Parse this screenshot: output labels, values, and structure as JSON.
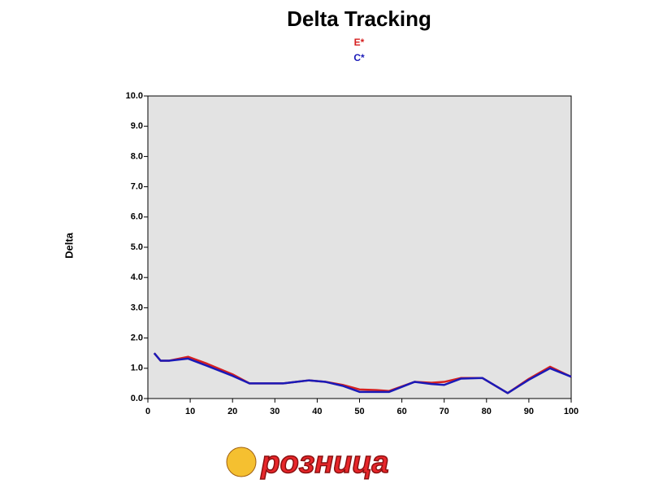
{
  "chart_data": {
    "type": "line",
    "title": "Delta Tracking",
    "y_label": "Delta",
    "x": [
      1.5,
      3,
      5,
      9.5,
      14,
      20,
      24,
      28,
      32,
      35,
      38,
      42,
      46,
      50,
      54,
      57,
      63,
      67,
      70,
      74,
      79,
      85,
      90,
      95,
      100
    ],
    "series": [
      {
        "name": "E*",
        "color": "#d62020",
        "values": [
          1.5,
          1.25,
          1.25,
          1.38,
          1.15,
          0.8,
          0.5,
          0.5,
          0.5,
          0.55,
          0.6,
          0.55,
          0.45,
          0.3,
          0.28,
          0.25,
          0.55,
          0.52,
          0.55,
          0.68,
          0.68,
          0.18,
          0.65,
          1.05,
          0.72
        ]
      },
      {
        "name": "C*",
        "color": "#1a1ab8",
        "values": [
          1.5,
          1.25,
          1.25,
          1.32,
          1.08,
          0.75,
          0.5,
          0.5,
          0.5,
          0.55,
          0.6,
          0.55,
          0.42,
          0.22,
          0.22,
          0.22,
          0.55,
          0.48,
          0.45,
          0.66,
          0.68,
          0.18,
          0.62,
          1.0,
          0.72
        ]
      }
    ],
    "xlim": [
      0,
      100
    ],
    "xticks": [
      0,
      10,
      20,
      30,
      40,
      50,
      60,
      70,
      80,
      90,
      100
    ],
    "ylim": [
      0,
      10
    ],
    "yticks": [
      {
        "value": 0,
        "label": "0.0"
      },
      {
        "value": 1,
        "label": "1.0"
      },
      {
        "value": 2,
        "label": "2.0"
      },
      {
        "value": 3,
        "label": "3.0"
      },
      {
        "value": 4,
        "label": "4.0"
      },
      {
        "value": 5,
        "label": "5.0"
      },
      {
        "value": 6,
        "label": "6.0"
      },
      {
        "value": 7,
        "label": "7.0"
      },
      {
        "value": 8,
        "label": "8.0"
      },
      {
        "value": 9,
        "label": "9.0"
      },
      {
        "value": 10,
        "label": "10.0"
      }
    ],
    "grid": false
  },
  "logo": "розница"
}
